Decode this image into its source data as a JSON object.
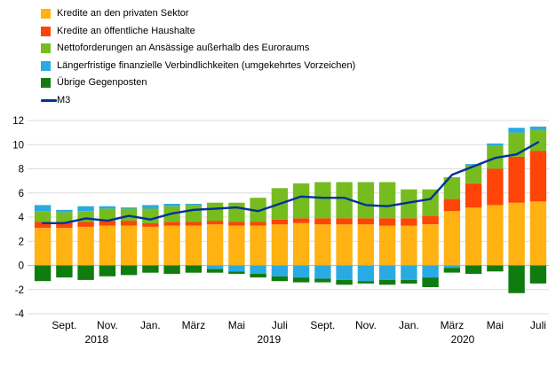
{
  "legend": {
    "items": [
      {
        "label": "Kredite an den privaten Sektor",
        "color": "#FFB212",
        "type": "box"
      },
      {
        "label": "Kredite an öffentliche Haushalte",
        "color": "#FF4408",
        "type": "box"
      },
      {
        "label": "Nettoforderungen an Ansässige außerhalb des Euroraums",
        "color": "#77BC1F",
        "type": "box"
      },
      {
        "label": "Längerfristige finanzielle Verbindlichkeiten (umgekehrtes Vorzeichen)",
        "color": "#29ABE2",
        "type": "box"
      },
      {
        "label": "Übrige Gegenposten",
        "color": "#107C10",
        "type": "box"
      },
      {
        "label": "M3",
        "color": "#003299",
        "type": "line"
      }
    ]
  },
  "chart_data": {
    "type": "bar",
    "stacked": true,
    "grid": true,
    "x": [
      "Aug. 2018",
      "Sept. 2018",
      "Okt. 2018",
      "Nov. 2018",
      "Dez. 2018",
      "Jan. 2019",
      "Feb. 2019",
      "März 2019",
      "Apr. 2019",
      "Mai 2019",
      "Juni 2019",
      "Juli 2019",
      "Aug. 2019",
      "Sept. 2019",
      "Okt. 2019",
      "Nov. 2019",
      "Dez. 2019",
      "Jan. 2020",
      "Feb. 2020",
      "März 2020",
      "Apr. 2020",
      "Mai 2020",
      "Juni 2020",
      "Juli 2020"
    ],
    "series": [
      {
        "name": "Kredite an den privaten Sektor",
        "color": "#FFB212",
        "values": [
          3.1,
          3.1,
          3.2,
          3.3,
          3.3,
          3.2,
          3.3,
          3.3,
          3.4,
          3.3,
          3.3,
          3.4,
          3.5,
          3.4,
          3.4,
          3.4,
          3.3,
          3.3,
          3.4,
          4.5,
          4.8,
          5.0,
          5.2,
          5.3
        ]
      },
      {
        "name": "Kredite an öffentliche Haushalte",
        "color": "#FF4408",
        "values": [
          0.5,
          0.5,
          0.4,
          0.4,
          0.4,
          0.3,
          0.3,
          0.3,
          0.3,
          0.3,
          0.3,
          0.4,
          0.4,
          0.5,
          0.5,
          0.5,
          0.6,
          0.6,
          0.7,
          1.0,
          2.0,
          3.0,
          3.8,
          4.2
        ]
      },
      {
        "name": "Nettoforderungen an Ansässige außerhalb des Euroraums",
        "color": "#77BC1F",
        "values": [
          0.9,
          0.8,
          0.9,
          1.0,
          1.0,
          1.2,
          1.3,
          1.4,
          1.5,
          1.6,
          2.0,
          2.6,
          2.9,
          3.0,
          3.0,
          3.0,
          3.0,
          2.4,
          2.2,
          1.8,
          1.5,
          1.9,
          2.0,
          1.7
        ]
      },
      {
        "name": "Längerfristige finanzielle Verbindlichkeiten (umgekehrtes Vorzeichen)",
        "color": "#29ABE2",
        "values": [
          0.5,
          0.2,
          0.4,
          0.2,
          0.1,
          0.3,
          0.2,
          0.1,
          -0.3,
          -0.5,
          -0.7,
          -0.9,
          -1.0,
          -1.1,
          -1.2,
          -1.3,
          -1.2,
          -1.2,
          -1.0,
          -0.2,
          0.1,
          0.2,
          0.4,
          0.3
        ]
      },
      {
        "name": "Übrige Gegenposten",
        "color": "#107C10",
        "values": [
          -1.3,
          -1.0,
          -1.2,
          -0.9,
          -0.8,
          -0.6,
          -0.7,
          -0.6,
          -0.3,
          -0.2,
          -0.3,
          -0.4,
          -0.4,
          -0.3,
          -0.4,
          -0.2,
          -0.4,
          -0.3,
          -0.8,
          -0.4,
          -0.7,
          -0.5,
          -2.3,
          -1.5
        ]
      }
    ],
    "line": {
      "name": "M3",
      "color": "#003299",
      "values": [
        3.5,
        3.5,
        3.9,
        3.7,
        4.1,
        3.8,
        4.3,
        4.6,
        4.7,
        4.8,
        4.5,
        5.1,
        5.7,
        5.6,
        5.6,
        5.0,
        4.9,
        5.2,
        5.5,
        7.5,
        8.2,
        8.9,
        9.2,
        10.2
      ]
    },
    "ylim": [
      -4,
      12
    ],
    "yticks": [
      -4,
      -2,
      0,
      2,
      4,
      6,
      8,
      10,
      12
    ],
    "x_ticks": [
      {
        "i": 1,
        "label": "Sept."
      },
      {
        "i": 3,
        "label": "Nov."
      },
      {
        "i": 5,
        "label": "Jan."
      },
      {
        "i": 7,
        "label": "März"
      },
      {
        "i": 9,
        "label": "Mai"
      },
      {
        "i": 11,
        "label": "Juli"
      },
      {
        "i": 13,
        "label": "Sept."
      },
      {
        "i": 15,
        "label": "Nov."
      },
      {
        "i": 17,
        "label": "Jan."
      },
      {
        "i": 19,
        "label": "März"
      },
      {
        "i": 21,
        "label": "Mai"
      },
      {
        "i": 23,
        "label": "Juli"
      }
    ],
    "years": [
      {
        "i": 2.5,
        "label": "2018"
      },
      {
        "i": 10.5,
        "label": "2019"
      },
      {
        "i": 19.5,
        "label": "2020"
      }
    ]
  }
}
